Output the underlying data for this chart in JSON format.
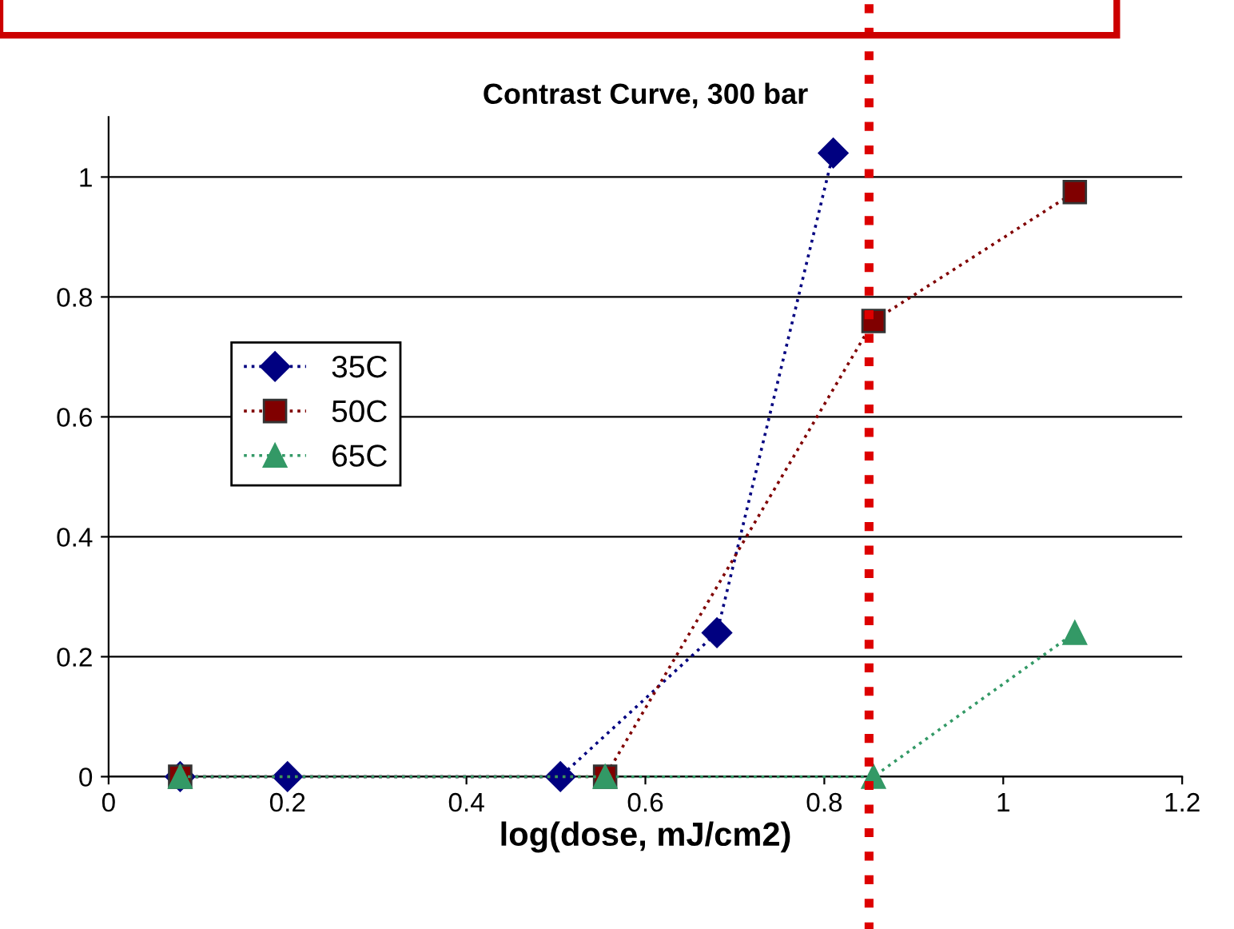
{
  "chart_data": {
    "type": "line",
    "title": "Contrast Curve, 300 bar",
    "xlabel": "log(dose, mJ/cm2)",
    "xlim": [
      0,
      1.2
    ],
    "xticks": [
      0,
      0.2,
      0.4,
      0.6,
      0.8,
      1,
      1.2
    ],
    "ylim": [
      0,
      1.1
    ],
    "yticks": [
      0,
      0.2,
      0.4,
      0.6,
      0.8,
      1
    ],
    "grid": "y",
    "legend": "left",
    "line_style": "dotted",
    "series": [
      {
        "name": "35C",
        "color": "#000080",
        "marker": "diamond",
        "x": [
          0.08,
          0.2,
          0.505,
          0.68,
          0.81
        ],
        "values": [
          0,
          0,
          0,
          0.24,
          1.04
        ]
      },
      {
        "name": "50C",
        "color": "#800000",
        "marker": "square",
        "x": [
          0.08,
          0.555,
          0.855,
          1.08
        ],
        "values": [
          0,
          0,
          0.76,
          0.975
        ]
      },
      {
        "name": "65C",
        "color": "#339966",
        "marker": "triangle",
        "x": [
          0.08,
          0.555,
          0.855,
          1.08
        ],
        "values": [
          0,
          0,
          0,
          0.24
        ]
      }
    ],
    "ref_lines": [
      {
        "axis": "x",
        "value": 0.85,
        "color": "#dd0000",
        "line_style": "dotted"
      }
    ]
  }
}
